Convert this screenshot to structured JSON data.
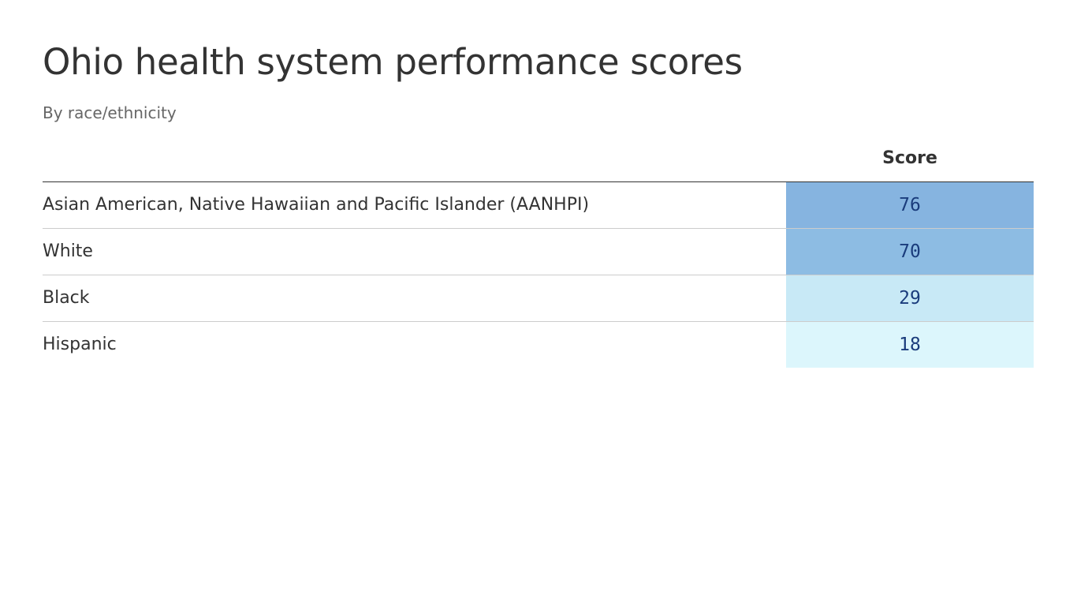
{
  "title": "Ohio health system performance scores",
  "subtitle": "By race/ethnicity",
  "chart_data": {
    "type": "table",
    "columns": [
      "",
      "Score"
    ],
    "rows": [
      {
        "label": "Asian American, Native Hawaiian and Pacific Islander (AANHPI)",
        "score": 76,
        "color": "#86b4e0"
      },
      {
        "label": "White",
        "score": 70,
        "color": "#8dbce3"
      },
      {
        "label": "Black",
        "score": 29,
        "color": "#c8e9f6"
      },
      {
        "label": "Hispanic",
        "score": 18,
        "color": "#dcf6fc"
      }
    ]
  }
}
